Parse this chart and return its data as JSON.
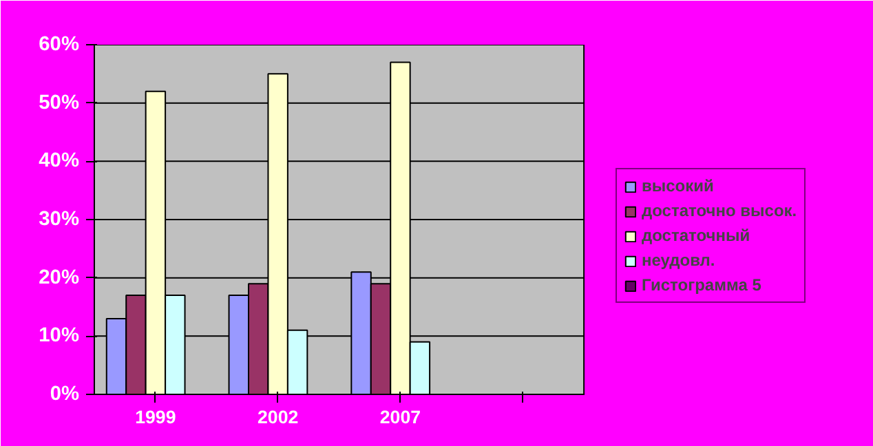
{
  "chart_data": {
    "type": "bar",
    "categories": [
      "1999",
      "2002",
      "2007",
      null
    ],
    "series": [
      {
        "name": "высокий",
        "color": "#9999ff",
        "values": [
          13,
          17,
          21,
          null
        ]
      },
      {
        "name": "достаточно высок.",
        "color": "#993366",
        "values": [
          17,
          19,
          19,
          null
        ]
      },
      {
        "name": "достаточный",
        "color": "#ffffcc",
        "values": [
          52,
          55,
          57,
          null
        ]
      },
      {
        "name": "неудовл.",
        "color": "#ccffff",
        "values": [
          17,
          11,
          9,
          null
        ]
      },
      {
        "name": "Гистограмма 5",
        "color": "#660066",
        "values": [
          null,
          null,
          null,
          null
        ]
      }
    ],
    "ylim": [
      0,
      60
    ],
    "yticks": [
      {
        "value": 0,
        "label": "0%"
      },
      {
        "value": 10,
        "label": "10%"
      },
      {
        "value": 20,
        "label": "20%"
      },
      {
        "value": 30,
        "label": "30%"
      },
      {
        "value": 40,
        "label": "40%"
      },
      {
        "value": 50,
        "label": "50%"
      },
      {
        "value": 60,
        "label": "60%"
      }
    ],
    "grid": "y",
    "legend": "right"
  }
}
